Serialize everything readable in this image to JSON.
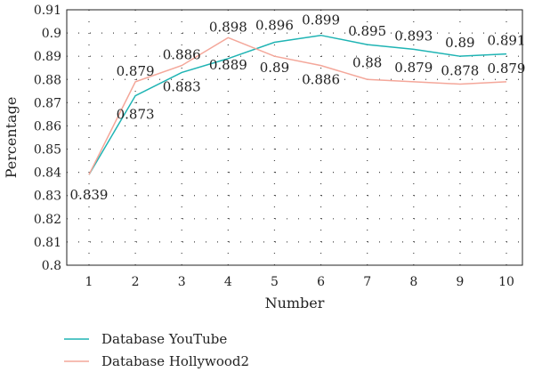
{
  "chart_data": {
    "type": "line",
    "xlabel": "Number",
    "ylabel": "Percentage",
    "x": [
      1,
      2,
      3,
      4,
      5,
      6,
      7,
      8,
      9,
      10
    ],
    "xlim": [
      1,
      10
    ],
    "ylim": [
      0.8,
      0.91
    ],
    "yticks": [
      "0.8",
      "0.81",
      "0.82",
      "0.83",
      "0.84",
      "0.85",
      "0.86",
      "0.87",
      "0.88",
      "0.89",
      "0.9",
      "0.91"
    ],
    "xticks": [
      "1",
      "2",
      "3",
      "4",
      "5",
      "6",
      "7",
      "8",
      "9",
      "10"
    ],
    "grid": true,
    "legend_position": "bottom-left",
    "series": [
      {
        "name": "Database YouTube",
        "color": "#1fb4b4",
        "values": [
          0.839,
          0.873,
          0.883,
          0.889,
          0.896,
          0.899,
          0.895,
          0.893,
          0.89,
          0.891
        ],
        "labels": [
          "0.839",
          "0.873",
          "0.883",
          "0.889",
          "0.896",
          "0.899",
          "0.895",
          "0.893",
          "0.89",
          "0.891"
        ]
      },
      {
        "name": "Database Hollywood2",
        "color": "#f4a79a",
        "values": [
          0.839,
          0.879,
          0.886,
          0.898,
          0.89,
          0.886,
          0.88,
          0.879,
          0.878,
          0.879
        ],
        "labels": [
          "",
          "0.879",
          "0.886",
          "0.898",
          "0.89",
          "0.886",
          "0.88",
          "0.879",
          "0.878",
          "0.879"
        ]
      }
    ]
  }
}
